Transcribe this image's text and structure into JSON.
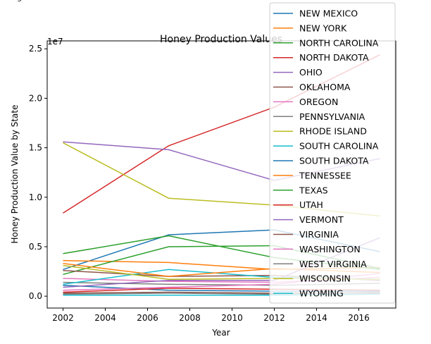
{
  "chart_data": {
    "type": "line",
    "title": "Honey Production Values",
    "xlabel": "Year",
    "ylabel": "Honey Production Value by State",
    "y_multiplier_label": "1e7",
    "top_left_fragment": "g",
    "xlim": [
      2001.25,
      2017.75
    ],
    "ylim": [
      -1.2,
      25.8
    ],
    "x_ticks": [
      2002,
      2004,
      2006,
      2008,
      2010,
      2012,
      2014,
      2016
    ],
    "y_ticks": [
      0.0,
      5.0,
      10.0,
      15.0,
      20.0,
      25.0
    ],
    "y_tick_labels": [
      "0.0",
      "0.5",
      "1.0",
      "1.5",
      "2.0",
      "2.5"
    ],
    "grid": false,
    "legend_position": "top-right",
    "x": [
      2002,
      2007,
      2012,
      2017
    ],
    "series": [
      {
        "name": "NEW MEXICO",
        "color": "#1f77b4",
        "values": [
          2.7,
          6.2,
          6.7,
          4.5
        ]
      },
      {
        "name": "NEW YORK",
        "color": "#ff7f0e",
        "values": [
          3.6,
          3.4,
          2.7,
          2.9
        ]
      },
      {
        "name": "NORTH CAROLINA",
        "color": "#2ca02c",
        "values": [
          2.2,
          5.0,
          5.1,
          2.8
        ]
      },
      {
        "name": "NORTH DAKOTA",
        "color": "#d62728",
        "values": [
          8.4,
          15.2,
          19.1,
          24.4
        ]
      },
      {
        "name": "OHIO",
        "color": "#9467bd",
        "values": [
          15.6,
          14.8,
          11.7,
          13.9
        ]
      },
      {
        "name": "OKLAHOMA",
        "color": "#8c564b",
        "values": [
          2.6,
          2.0,
          2.1,
          1.6
        ]
      },
      {
        "name": "OREGON",
        "color": "#e377c2",
        "values": [
          1.8,
          1.5,
          1.4,
          1.9
        ]
      },
      {
        "name": "PENNSYLVANIA",
        "color": "#7f7f7f",
        "values": [
          1.4,
          1.2,
          1.1,
          1.3
        ]
      },
      {
        "name": "RHODE ISLAND",
        "color": "#bcbd22",
        "values": [
          15.5,
          9.9,
          9.2,
          8.1
        ]
      },
      {
        "name": "SOUTH CAROLINA",
        "color": "#17becf",
        "values": [
          1.2,
          2.7,
          1.9,
          1.7
        ]
      },
      {
        "name": "SOUTH DAKOTA",
        "color": "#1f77b4",
        "values": [
          1.1,
          0.6,
          0.5,
          0.5
        ]
      },
      {
        "name": "TENNESSEE",
        "color": "#ff7f0e",
        "values": [
          3.3,
          2.0,
          2.8,
          2.4
        ]
      },
      {
        "name": "TEXAS",
        "color": "#2ca02c",
        "values": [
          4.3,
          6.1,
          3.9,
          2.7
        ]
      },
      {
        "name": "UTAH",
        "color": "#d62728",
        "values": [
          0.4,
          0.8,
          0.7,
          0.6
        ]
      },
      {
        "name": "VERMONT",
        "color": "#9467bd",
        "values": [
          0.9,
          1.6,
          1.6,
          5.9
        ]
      },
      {
        "name": "VIRGINIA",
        "color": "#8c564b",
        "values": [
          0.3,
          0.4,
          0.3,
          0.3
        ]
      },
      {
        "name": "WASHINGTON",
        "color": "#e377c2",
        "values": [
          0.6,
          0.9,
          1.2,
          2.3
        ]
      },
      {
        "name": "WEST VIRGINIA",
        "color": "#7f7f7f",
        "values": [
          0.2,
          0.3,
          0.2,
          0.4
        ]
      },
      {
        "name": "WISCONSIN",
        "color": "#bcbd22",
        "values": [
          3.1,
          1.7,
          1.8,
          1.7
        ]
      },
      {
        "name": "WYOMING",
        "color": "#17becf",
        "values": [
          0.1,
          0.1,
          0.1,
          0.2
        ]
      }
    ]
  }
}
